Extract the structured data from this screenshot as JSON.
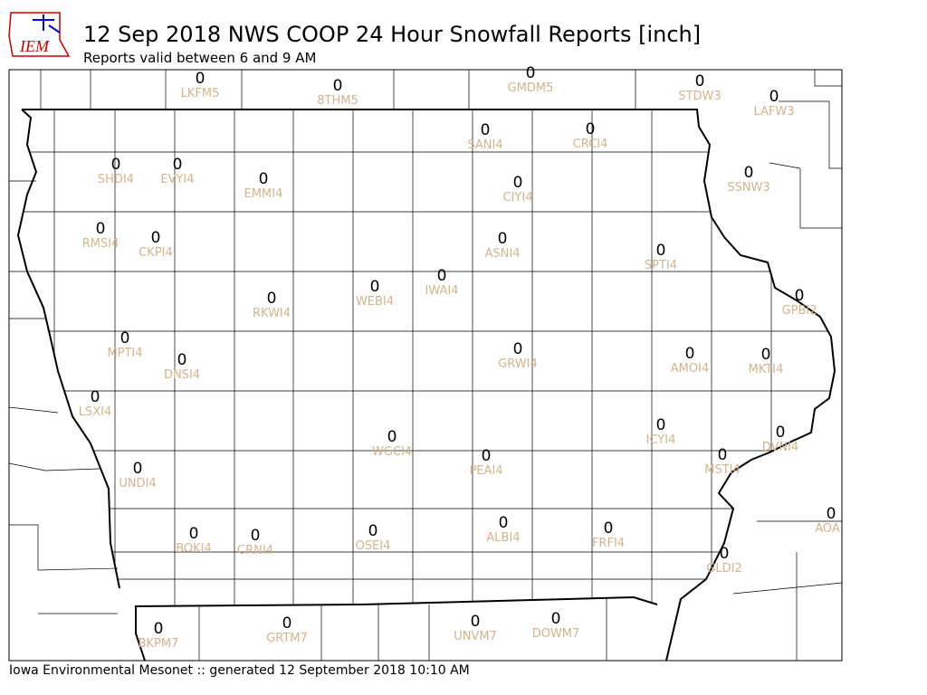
{
  "logo": {
    "text": "IEM"
  },
  "header": {
    "title": "12 Sep 2018 NWS COOP 24 Hour Snowfall Reports [inch]",
    "subtitle": "Reports valid between 6 and 9 AM"
  },
  "stations": [
    {
      "id": "LKFM5",
      "value": 0
    },
    {
      "id": "8THM5",
      "value": 0
    },
    {
      "id": "GMDM5",
      "value": 0
    },
    {
      "id": "STDW3",
      "value": 0
    },
    {
      "id": "LAFW3",
      "value": 0
    },
    {
      "id": "SANI4",
      "value": 0
    },
    {
      "id": "CRCI4",
      "value": 0
    },
    {
      "id": "SHDI4",
      "value": 0
    },
    {
      "id": "EVYI4",
      "value": 0
    },
    {
      "id": "EMMI4",
      "value": 0
    },
    {
      "id": "CIYI4",
      "value": 0
    },
    {
      "id": "SSNW3",
      "value": 0
    },
    {
      "id": "RMSI4",
      "value": 0
    },
    {
      "id": "CKPI4",
      "value": 0
    },
    {
      "id": "ASNI4",
      "value": 0
    },
    {
      "id": "SPTI4",
      "value": 0
    },
    {
      "id": "IWAI4",
      "value": 0
    },
    {
      "id": "WEBI4",
      "value": 0
    },
    {
      "id": "RKWI4",
      "value": 0
    },
    {
      "id": "GPBI2",
      "value": 0
    },
    {
      "id": "MPTI4",
      "value": 0
    },
    {
      "id": "GRWI4",
      "value": 0
    },
    {
      "id": "DNSI4",
      "value": 0
    },
    {
      "id": "AMOI4",
      "value": 0
    },
    {
      "id": "MKTI4",
      "value": 0
    },
    {
      "id": "LSXI4",
      "value": 0
    },
    {
      "id": "ICYI4",
      "value": 0
    },
    {
      "id": "WGCI4",
      "value": 0
    },
    {
      "id": "DVNI4",
      "value": 0
    },
    {
      "id": "PEAI4",
      "value": 0
    },
    {
      "id": "MSTI4",
      "value": 0
    },
    {
      "id": "UNDI4",
      "value": 0
    },
    {
      "id": "AOA",
      "value": 0
    },
    {
      "id": "ALBI4",
      "value": 0
    },
    {
      "id": "FRFI4",
      "value": 0
    },
    {
      "id": "BOKI4",
      "value": 0
    },
    {
      "id": "CRNI4",
      "value": 0
    },
    {
      "id": "OSEI4",
      "value": 0
    },
    {
      "id": "GLDI2",
      "value": 0
    },
    {
      "id": "DOWM7",
      "value": 0
    },
    {
      "id": "UNVM7",
      "value": 0
    },
    {
      "id": "GRTM7",
      "value": 0
    },
    {
      "id": "BKPM7",
      "value": 0
    }
  ],
  "footer": {
    "text": "Iowa Environmental Mesonet :: generated 12 September 2018 10:10 AM"
  }
}
